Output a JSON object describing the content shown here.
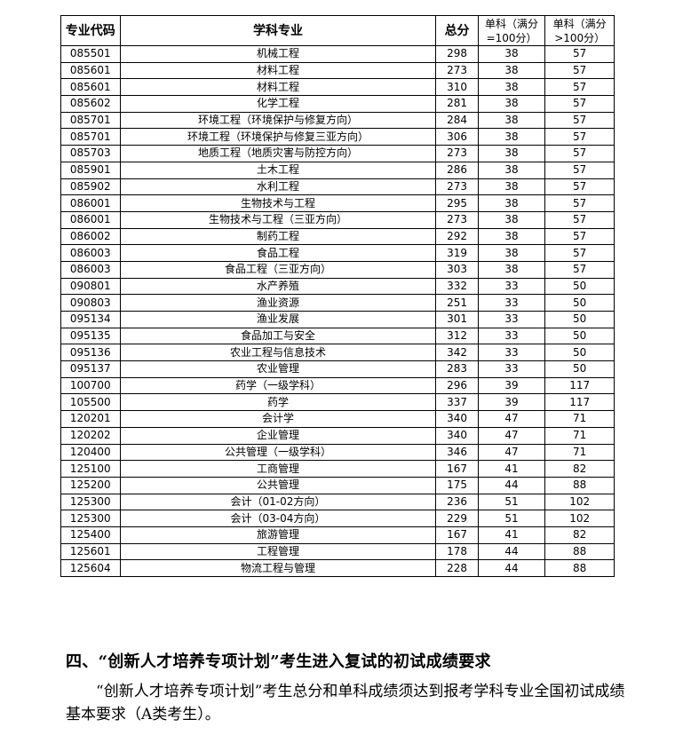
{
  "table": {
    "headers": [
      "专业代码",
      "学科专业",
      "总分",
      "单科（满分=100分）",
      "单科（满分>100分）"
    ],
    "rows": [
      [
        "085501",
        "机械工程",
        "298",
        "38",
        "57"
      ],
      [
        "085601",
        "材料工程",
        "273",
        "38",
        "57"
      ],
      [
        "085601",
        "材料工程",
        "310",
        "38",
        "57"
      ],
      [
        "085602",
        "化学工程",
        "281",
        "38",
        "57"
      ],
      [
        "085701",
        "环境工程（环境保护与修复方向）",
        "284",
        "38",
        "57"
      ],
      [
        "085701",
        "环境工程（环境保护与修复三亚方向）",
        "306",
        "38",
        "57"
      ],
      [
        "085703",
        "地质工程（地质灾害与防控方向）",
        "273",
        "38",
        "57"
      ],
      [
        "085901",
        "土木工程",
        "286",
        "38",
        "57"
      ],
      [
        "085902",
        "水利工程",
        "273",
        "38",
        "57"
      ],
      [
        "086001",
        "生物技术与工程",
        "295",
        "38",
        "57"
      ],
      [
        "086001",
        "生物技术与工程（三亚方向）",
        "273",
        "38",
        "57"
      ],
      [
        "086002",
        "制药工程",
        "292",
        "38",
        "57"
      ],
      [
        "086003",
        "食品工程",
        "319",
        "38",
        "57"
      ],
      [
        "086003",
        "食品工程（三亚方向）",
        "303",
        "38",
        "57"
      ],
      [
        "090801",
        "水产养殖",
        "332",
        "33",
        "50"
      ],
      [
        "090803",
        "渔业资源",
        "251",
        "33",
        "50"
      ],
      [
        "095134",
        "渔业发展",
        "301",
        "33",
        "50"
      ],
      [
        "095135",
        "食品加工与安全",
        "312",
        "33",
        "50"
      ],
      [
        "095136",
        "农业工程与信息技术",
        "342",
        "33",
        "50"
      ],
      [
        "095137",
        "农业管理",
        "283",
        "33",
        "50"
      ],
      [
        "100700",
        "药学（一级学科）",
        "296",
        "39",
        "117"
      ],
      [
        "105500",
        "药学",
        "337",
        "39",
        "117"
      ],
      [
        "120201",
        "会计学",
        "340",
        "47",
        "71"
      ],
      [
        "120202",
        "企业管理",
        "340",
        "47",
        "71"
      ],
      [
        "120400",
        "公共管理（一级学科）",
        "346",
        "47",
        "71"
      ],
      [
        "125100",
        "工商管理",
        "167",
        "41",
        "82"
      ],
      [
        "125200",
        "公共管理",
        "175",
        "44",
        "88"
      ],
      [
        "125300",
        "会计（01-02方向）",
        "236",
        "51",
        "102"
      ],
      [
        "125300",
        "会计（03-04方向）",
        "229",
        "51",
        "102"
      ],
      [
        "125400",
        "旅游管理",
        "167",
        "41",
        "82"
      ],
      [
        "125601",
        "工程管理",
        "178",
        "44",
        "88"
      ],
      [
        "125604",
        "物流工程与管理",
        "228",
        "44",
        "88"
      ]
    ]
  },
  "section": {
    "heading": "四、“创新人才培养专项计划”考生进入复试的初试成绩要求",
    "paragraph": "“创新人才培养专项计划”考生总分和单科成绩须达到报考学科专业全国初试成绩基本要求（A类考生）。"
  }
}
